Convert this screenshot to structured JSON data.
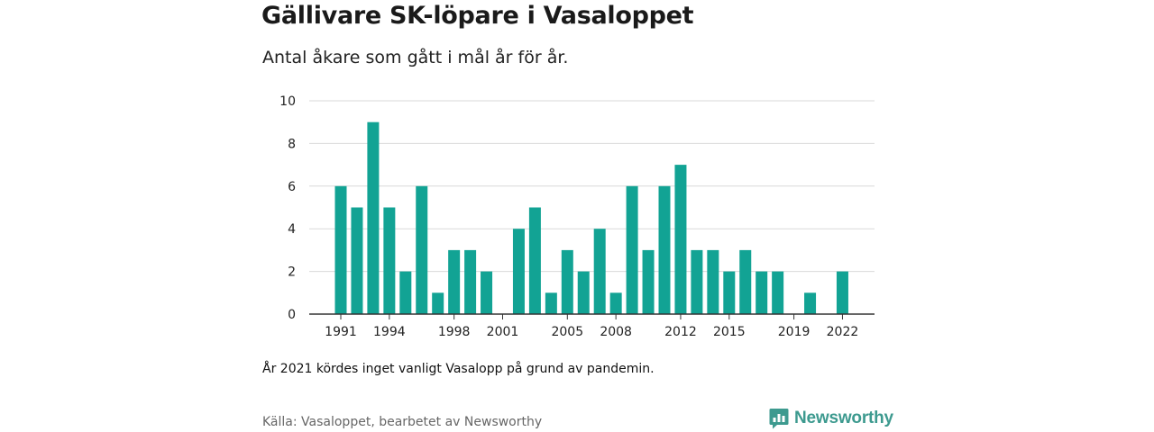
{
  "header": {
    "title": "Gällivare SK-löpare i Vasaloppet",
    "subtitle": "Antal åkare som gått i mål år för år."
  },
  "footer": {
    "note": "År 2021 kördes inget vanligt Vasalopp på grund av pandemin.",
    "source": "Källa: Vasaloppet, bearbetet av Newsworthy",
    "brand": "Newsworthy"
  },
  "colors": {
    "bar": "#12a394",
    "grid": "#d9d9d9",
    "axis": "#333333",
    "brand": "#3d9a8f"
  },
  "icons": {
    "brand_logo": "bar-chart-speech-bubble-icon"
  },
  "chart_data": {
    "type": "bar",
    "title": "Gällivare SK-löpare i Vasaloppet",
    "subtitle": "Antal åkare som gått i mål år för år.",
    "xlabel": "",
    "ylabel": "",
    "categories": [
      1991,
      1992,
      1993,
      1994,
      1995,
      1996,
      1997,
      1998,
      1999,
      2000,
      2001,
      2002,
      2003,
      2004,
      2005,
      2006,
      2007,
      2008,
      2009,
      2010,
      2011,
      2012,
      2013,
      2014,
      2015,
      2016,
      2017,
      2018,
      2019,
      2020,
      2021,
      2022
    ],
    "values": [
      6,
      5,
      9,
      5,
      2,
      6,
      1,
      3,
      3,
      2,
      0,
      4,
      5,
      1,
      3,
      2,
      4,
      1,
      6,
      3,
      6,
      7,
      3,
      3,
      2,
      3,
      2,
      2,
      0,
      1,
      0,
      2
    ],
    "x_tick_labels": [
      "1991",
      "1994",
      "1998",
      "2001",
      "2005",
      "2008",
      "2012",
      "2015",
      "2019",
      "2022"
    ],
    "y_tick_labels": [
      "0",
      "2",
      "4",
      "6",
      "8",
      "10"
    ],
    "ylim": [
      0,
      10
    ],
    "grid": true,
    "legend": "none"
  }
}
